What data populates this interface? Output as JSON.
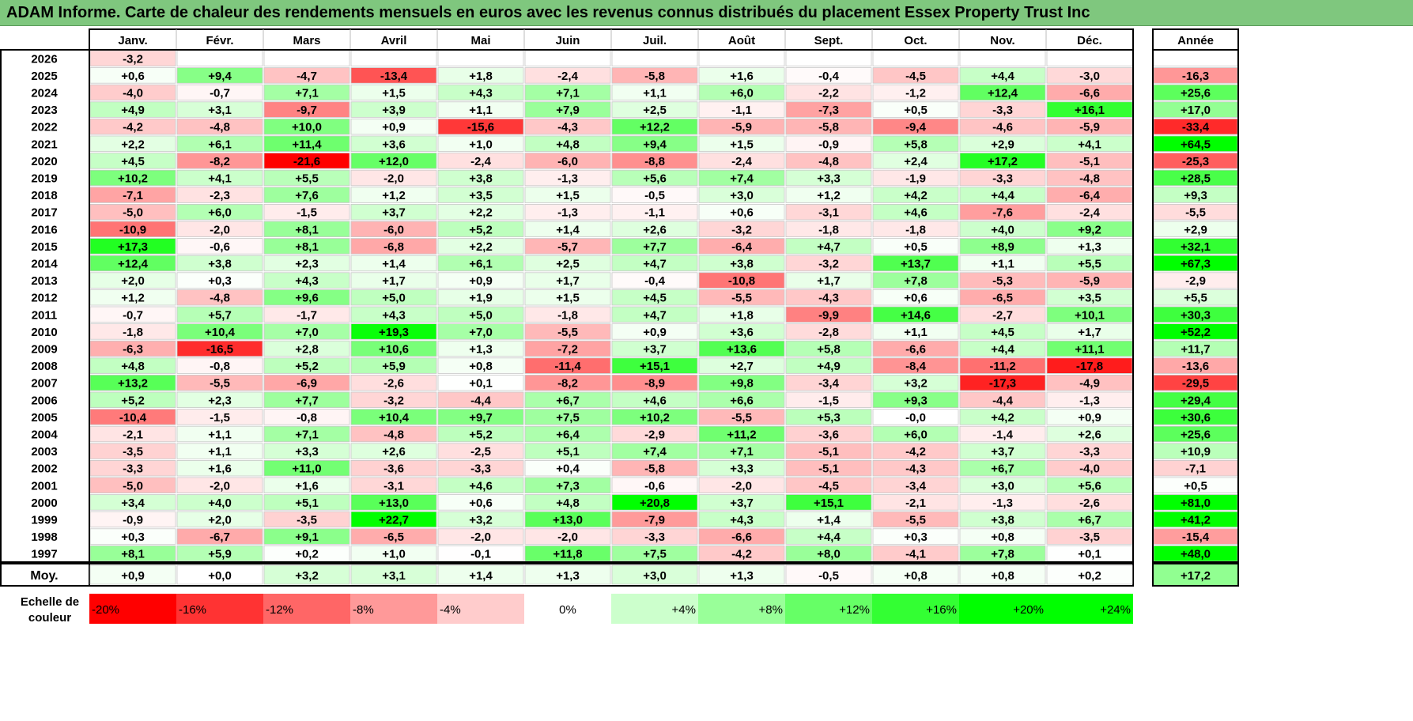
{
  "title": "ADAM Informe. Carte de chaleur des rendements mensuels en euros avec les revenus connus distribués du placement Essex Property Trust Inc",
  "chart_data": {
    "type": "heatmap",
    "months": [
      "Janv.",
      "Févr.",
      "Mars",
      "Avril",
      "Mai",
      "Juin",
      "Juil.",
      "Août",
      "Sept.",
      "Oct.",
      "Nov.",
      "Déc."
    ],
    "year_header": "Année",
    "avg_label": "Moy.",
    "scale_label_line1": "Echelle de",
    "scale_label_line2": "couleur",
    "rows": [
      {
        "year": "2026",
        "months": [
          "-3,2",
          "",
          "",
          "",
          "",
          "",
          "",
          "",
          "",
          "",
          "",
          ""
        ],
        "annual": ""
      },
      {
        "year": "2025",
        "months": [
          "+0,6",
          "+9,4",
          "-4,7",
          "-13,4",
          "+1,8",
          "-2,4",
          "-5,8",
          "+1,6",
          "-0,4",
          "-4,5",
          "+4,4",
          "-3,0"
        ],
        "annual": "-16,3"
      },
      {
        "year": "2024",
        "months": [
          "-4,0",
          "-0,7",
          "+7,1",
          "+1,5",
          "+4,3",
          "+7,1",
          "+1,1",
          "+6,0",
          "-2,2",
          "-1,2",
          "+12,4",
          "-6,6"
        ],
        "annual": "+25,6"
      },
      {
        "year": "2023",
        "months": [
          "+4,9",
          "+3,1",
          "-9,7",
          "+3,9",
          "+1,1",
          "+7,9",
          "+2,5",
          "-1,1",
          "-7,3",
          "+0,5",
          "-3,3",
          "+16,1"
        ],
        "annual": "+17,0"
      },
      {
        "year": "2022",
        "months": [
          "-4,2",
          "-4,8",
          "+10,0",
          "+0,9",
          "-15,6",
          "-4,3",
          "+12,2",
          "-5,9",
          "-5,8",
          "-9,4",
          "-4,6",
          "-5,9"
        ],
        "annual": "-33,4"
      },
      {
        "year": "2021",
        "months": [
          "+2,2",
          "+6,1",
          "+11,4",
          "+3,6",
          "+1,0",
          "+4,8",
          "+9,4",
          "+1,5",
          "-0,9",
          "+5,8",
          "+2,9",
          "+4,1"
        ],
        "annual": "+64,5"
      },
      {
        "year": "2020",
        "months": [
          "+4,5",
          "-8,2",
          "-21,6",
          "+12,0",
          "-2,4",
          "-6,0",
          "-8,8",
          "-2,4",
          "-4,8",
          "+2,4",
          "+17,2",
          "-5,1"
        ],
        "annual": "-25,3"
      },
      {
        "year": "2019",
        "months": [
          "+10,2",
          "+4,1",
          "+5,5",
          "-2,0",
          "+3,8",
          "-1,3",
          "+5,6",
          "+7,4",
          "+3,3",
          "-1,9",
          "-3,3",
          "-4,8"
        ],
        "annual": "+28,5"
      },
      {
        "year": "2018",
        "months": [
          "-7,1",
          "-2,3",
          "+7,6",
          "+1,2",
          "+3,5",
          "+1,5",
          "-0,5",
          "+3,0",
          "+1,2",
          "+4,2",
          "+4,4",
          "-6,4"
        ],
        "annual": "+9,3"
      },
      {
        "year": "2017",
        "months": [
          "-5,0",
          "+6,0",
          "-1,5",
          "+3,7",
          "+2,2",
          "-1,3",
          "-1,1",
          "+0,6",
          "-3,1",
          "+4,6",
          "-7,6",
          "-2,4"
        ],
        "annual": "-5,5"
      },
      {
        "year": "2016",
        "months": [
          "-10,9",
          "-2,0",
          "+8,1",
          "-6,0",
          "+5,2",
          "+1,4",
          "+2,6",
          "-3,2",
          "-1,8",
          "-1,8",
          "+4,0",
          "+9,2"
        ],
        "annual": "+2,9"
      },
      {
        "year": "2015",
        "months": [
          "+17,3",
          "-0,6",
          "+8,1",
          "-6,8",
          "+2,2",
          "-5,7",
          "+7,7",
          "-6,4",
          "+4,7",
          "+0,5",
          "+8,9",
          "+1,3"
        ],
        "annual": "+32,1"
      },
      {
        "year": "2014",
        "months": [
          "+12,4",
          "+3,8",
          "+2,3",
          "+1,4",
          "+6,1",
          "+2,5",
          "+4,7",
          "+3,8",
          "-3,2",
          "+13,7",
          "+1,1",
          "+5,5"
        ],
        "annual": "+67,3"
      },
      {
        "year": "2013",
        "months": [
          "+2,0",
          "+0,3",
          "+4,3",
          "+1,7",
          "+0,9",
          "+1,7",
          "-0,4",
          "-10,8",
          "+1,7",
          "+7,8",
          "-5,3",
          "-5,9"
        ],
        "annual": "-2,9"
      },
      {
        "year": "2012",
        "months": [
          "+1,2",
          "-4,8",
          "+9,6",
          "+5,0",
          "+1,9",
          "+1,5",
          "+4,5",
          "-5,5",
          "-4,3",
          "+0,6",
          "-6,5",
          "+3,5"
        ],
        "annual": "+5,5"
      },
      {
        "year": "2011",
        "months": [
          "-0,7",
          "+5,7",
          "-1,7",
          "+4,3",
          "+5,0",
          "-1,8",
          "+4,7",
          "+1,8",
          "-9,9",
          "+14,6",
          "-2,7",
          "+10,1"
        ],
        "annual": "+30,3"
      },
      {
        "year": "2010",
        "months": [
          "-1,8",
          "+10,4",
          "+7,0",
          "+19,3",
          "+7,0",
          "-5,5",
          "+0,9",
          "+3,6",
          "-2,8",
          "+1,1",
          "+4,5",
          "+1,7"
        ],
        "annual": "+52,2"
      },
      {
        "year": "2009",
        "months": [
          "-6,3",
          "-16,5",
          "+2,8",
          "+10,6",
          "+1,3",
          "-7,2",
          "+3,7",
          "+13,6",
          "+5,8",
          "-6,6",
          "+4,4",
          "+11,1"
        ],
        "annual": "+11,7"
      },
      {
        "year": "2008",
        "months": [
          "+4,8",
          "-0,8",
          "+5,2",
          "+5,9",
          "+0,8",
          "-11,4",
          "+15,1",
          "+2,7",
          "+4,9",
          "-8,4",
          "-11,2",
          "-17,8"
        ],
        "annual": "-13,6"
      },
      {
        "year": "2007",
        "months": [
          "+13,2",
          "-5,5",
          "-6,9",
          "-2,6",
          "+0,1",
          "-8,2",
          "-8,9",
          "+9,8",
          "-3,4",
          "+3,2",
          "-17,3",
          "-4,9"
        ],
        "annual": "-29,5"
      },
      {
        "year": "2006",
        "months": [
          "+5,2",
          "+2,3",
          "+7,7",
          "-3,2",
          "-4,4",
          "+6,7",
          "+4,6",
          "+6,6",
          "-1,5",
          "+9,3",
          "-4,4",
          "-1,3"
        ],
        "annual": "+29,4"
      },
      {
        "year": "2005",
        "months": [
          "-10,4",
          "-1,5",
          "-0,8",
          "+10,4",
          "+9,7",
          "+7,5",
          "+10,2",
          "-5,5",
          "+5,3",
          "-0,0",
          "+4,2",
          "+0,9"
        ],
        "annual": "+30,6"
      },
      {
        "year": "2004",
        "months": [
          "-2,1",
          "+1,1",
          "+7,1",
          "-4,8",
          "+5,2",
          "+6,4",
          "-2,9",
          "+11,2",
          "-3,6",
          "+6,0",
          "-1,4",
          "+2,6"
        ],
        "annual": "+25,6"
      },
      {
        "year": "2003",
        "months": [
          "-3,5",
          "+1,1",
          "+3,3",
          "+2,6",
          "-2,5",
          "+5,1",
          "+7,4",
          "+7,1",
          "-5,1",
          "-4,2",
          "+3,7",
          "-3,3"
        ],
        "annual": "+10,9"
      },
      {
        "year": "2002",
        "months": [
          "-3,3",
          "+1,6",
          "+11,0",
          "-3,6",
          "-3,3",
          "+0,4",
          "-5,8",
          "+3,3",
          "-5,1",
          "-4,3",
          "+6,7",
          "-4,0"
        ],
        "annual": "-7,1"
      },
      {
        "year": "2001",
        "months": [
          "-5,0",
          "-2,0",
          "+1,6",
          "-3,1",
          "+4,6",
          "+7,3",
          "-0,6",
          "-2,0",
          "-4,5",
          "-3,4",
          "+3,0",
          "+5,6"
        ],
        "annual": "+0,5"
      },
      {
        "year": "2000",
        "months": [
          "+3,4",
          "+4,0",
          "+5,1",
          "+13,0",
          "+0,6",
          "+4,8",
          "+20,8",
          "+3,7",
          "+15,1",
          "-2,1",
          "-1,3",
          "-2,6"
        ],
        "annual": "+81,0"
      },
      {
        "year": "1999",
        "months": [
          "-0,9",
          "+2,0",
          "-3,5",
          "+22,7",
          "+3,2",
          "+13,0",
          "-7,9",
          "+4,3",
          "+1,4",
          "-5,5",
          "+3,8",
          "+6,7"
        ],
        "annual": "+41,2"
      },
      {
        "year": "1998",
        "months": [
          "+0,3",
          "-6,7",
          "+9,1",
          "-6,5",
          "-2,0",
          "-2,0",
          "-3,3",
          "-6,6",
          "+4,4",
          "+0,3",
          "+0,8",
          "-3,5"
        ],
        "annual": "-15,4"
      },
      {
        "year": "1997",
        "months": [
          "+8,1",
          "+5,9",
          "+0,2",
          "+1,0",
          "-0,1",
          "+11,8",
          "+7,5",
          "-4,2",
          "+8,0",
          "-4,1",
          "+7,8",
          "+0,1"
        ],
        "annual": "+48,0"
      }
    ],
    "averages": {
      "months": [
        "+0,9",
        "+0,0",
        "+3,2",
        "+3,1",
        "+1,4",
        "+1,3",
        "+3,0",
        "+1,3",
        "-0,5",
        "+0,8",
        "+0,8",
        "+0,2"
      ],
      "annual": "+17,2"
    },
    "scale": [
      "-20%",
      "-16%",
      "-12%",
      "-8%",
      "-4%",
      "0%",
      "+4%",
      "+8%",
      "+12%",
      "+16%",
      "+20%",
      "+24%"
    ],
    "colors": {
      "neg_max": "#ff0000",
      "pos_max": "#00ff00",
      "neutral": "#ffffff",
      "title_bg": "#7fc77e"
    }
  }
}
